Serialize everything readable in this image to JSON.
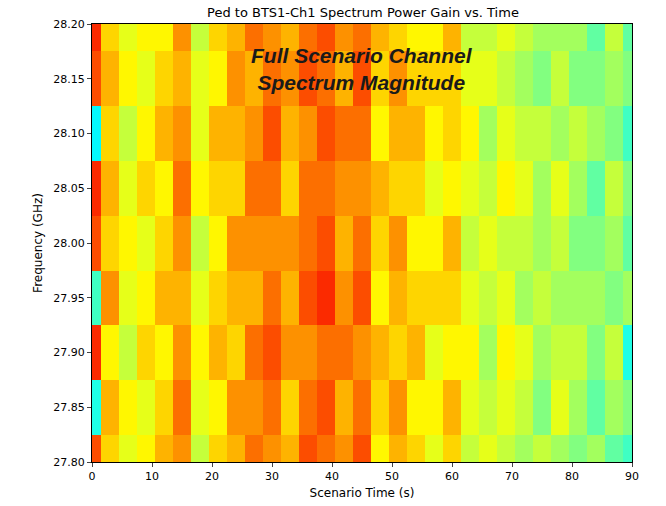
{
  "chart_data": {
    "type": "heatmap",
    "title": "Ped to BTS1-Ch1 Spectrum Power Gain vs. Time",
    "x_label": "Scenario Time (s)",
    "y_label": "Frequency (GHz)",
    "annotation": "Full Scenario Channel\nSpectrum Magnitude",
    "x": [
      0,
      3,
      6,
      9,
      12,
      15,
      18,
      21,
      24,
      27,
      30,
      33,
      36,
      39,
      42,
      45,
      48,
      51,
      54,
      57,
      60,
      63,
      66,
      69,
      72,
      75,
      78,
      81,
      84,
      87,
      90
    ],
    "y": [
      27.8,
      27.85,
      27.9,
      27.95,
      28.0,
      28.05,
      28.1,
      28.15,
      28.2
    ],
    "z": [
      [
        -106,
        -110,
        -112,
        -111,
        -109,
        -108,
        -113,
        -110,
        -109,
        -107,
        -108,
        -109,
        -106,
        -107,
        -108,
        -106,
        -111,
        -109,
        -110,
        -112,
        -110,
        -113,
        -112,
        -113,
        -114,
        -113,
        -114,
        -115,
        -114,
        -116,
        -117
      ],
      [
        -118,
        -109,
        -111,
        -112,
        -110,
        -107,
        -112,
        -111,
        -108,
        -108,
        -107,
        -110,
        -107,
        -106,
        -109,
        -107,
        -110,
        -108,
        -111,
        -111,
        -109,
        -112,
        -113,
        -112,
        -113,
        -115,
        -112,
        -114,
        -116,
        -114,
        -115
      ],
      [
        -105,
        -111,
        -113,
        -110,
        -111,
        -108,
        -111,
        -109,
        -110,
        -107,
        -106,
        -108,
        -108,
        -107,
        -107,
        -108,
        -109,
        -110,
        -109,
        -112,
        -111,
        -111,
        -114,
        -111,
        -112,
        -114,
        -113,
        -113,
        -115,
        -113,
        -118
      ],
      [
        -117,
        -108,
        -112,
        -111,
        -109,
        -109,
        -112,
        -110,
        -109,
        -109,
        -107,
        -109,
        -106,
        -105,
        -108,
        -106,
        -111,
        -109,
        -110,
        -110,
        -110,
        -112,
        -113,
        -112,
        -114,
        -113,
        -114,
        -114,
        -114,
        -115,
        -114
      ],
      [
        -106,
        -110,
        -111,
        -112,
        -110,
        -108,
        -113,
        -111,
        -108,
        -108,
        -108,
        -108,
        -107,
        -106,
        -109,
        -107,
        -110,
        -108,
        -111,
        -111,
        -109,
        -113,
        -112,
        -113,
        -113,
        -114,
        -113,
        -115,
        -115,
        -114,
        -116
      ],
      [
        -105,
        -109,
        -112,
        -110,
        -111,
        -107,
        -111,
        -110,
        -110,
        -107,
        -107,
        -110,
        -107,
        -107,
        -108,
        -108,
        -109,
        -110,
        -110,
        -112,
        -111,
        -112,
        -113,
        -111,
        -112,
        -114,
        -112,
        -114,
        -116,
        -113,
        -115
      ],
      [
        -119,
        -110,
        -113,
        -111,
        -109,
        -108,
        -112,
        -109,
        -109,
        -108,
        -106,
        -109,
        -108,
        -106,
        -107,
        -107,
        -111,
        -109,
        -109,
        -111,
        -110,
        -111,
        -114,
        -112,
        -113,
        -113,
        -114,
        -113,
        -114,
        -115,
        -117
      ],
      [
        -106,
        -109,
        -111,
        -112,
        -110,
        -109,
        -112,
        -111,
        -108,
        -109,
        -107,
        -108,
        -106,
        -107,
        -109,
        -106,
        -110,
        -108,
        -110,
        -110,
        -110,
        -112,
        -112,
        -113,
        -114,
        -115,
        -113,
        -115,
        -115,
        -114,
        -115
      ],
      [
        -105,
        -110,
        -112,
        -111,
        -111,
        -108,
        -113,
        -110,
        -109,
        -107,
        -108,
        -109,
        -107,
        -106,
        -108,
        -107,
        -109,
        -110,
        -111,
        -111,
        -109,
        -113,
        -113,
        -112,
        -113,
        -114,
        -114,
        -114,
        -116,
        -113,
        -116
      ]
    ],
    "zlim": [
      -130,
      -100
    ],
    "xlim": [
      0,
      90
    ],
    "xticks": [
      0,
      10,
      20,
      30,
      40,
      50,
      60,
      70,
      80,
      90
    ],
    "ylim": [
      27.8,
      28.2
    ],
    "yticks": [
      {
        "value": 27.8,
        "label": "27.80"
      },
      27.85,
      {
        "value": 27.9,
        "label": "27.90"
      },
      27.95,
      {
        "value": 28.0,
        "label": "28.00"
      },
      28.05,
      {
        "value": 28.1,
        "label": "28.10"
      },
      28.15,
      {
        "value": 28.2,
        "label": "28.20"
      }
    ],
    "grid": false
  }
}
